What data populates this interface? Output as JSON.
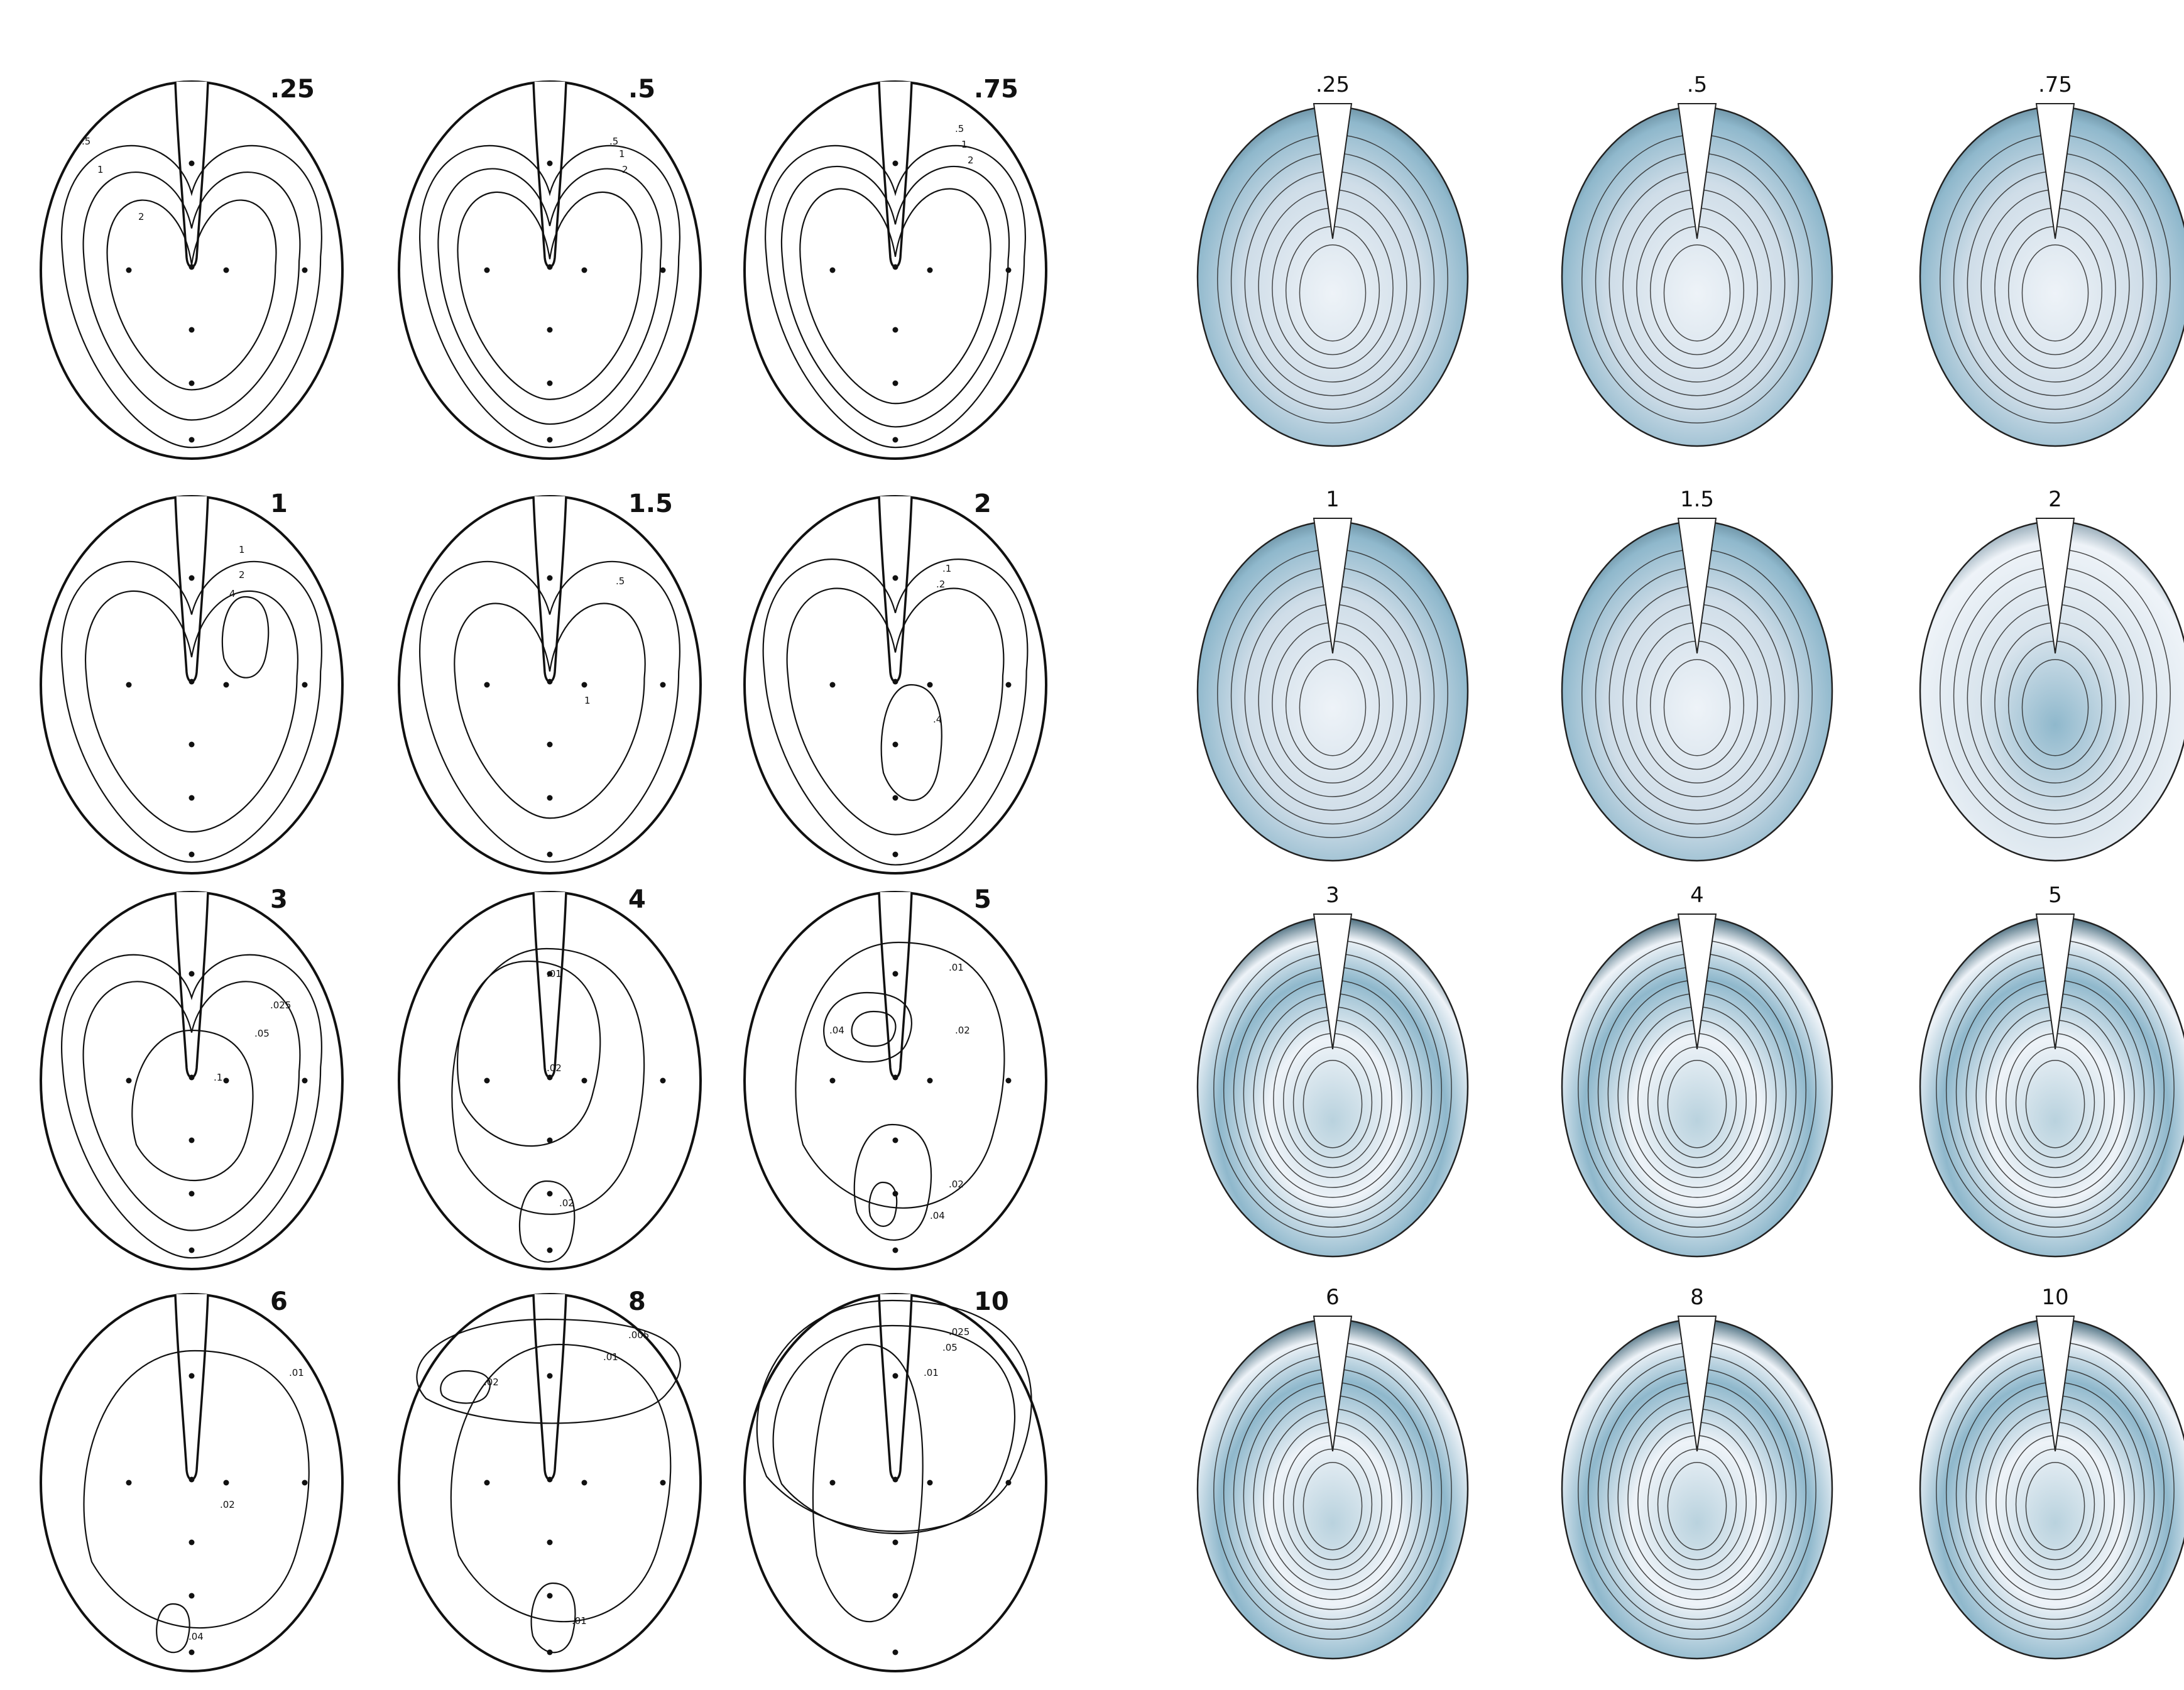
{
  "left_panels": [
    {
      "label": ".25",
      "contour_labels": [
        ".5",
        "1",
        "2"
      ]
    },
    {
      "label": ".5",
      "contour_labels": [
        ".5",
        "1",
        "2"
      ]
    },
    {
      "label": ".75",
      "contour_labels": [
        ".5",
        "1",
        "2"
      ]
    },
    {
      "label": "1",
      "contour_labels": [
        "1",
        "2",
        "4"
      ]
    },
    {
      "label": "1.5",
      "contour_labels": [
        ".5",
        "1"
      ]
    },
    {
      "label": "2",
      "contour_labels": [
        ".1",
        ".2",
        ".4"
      ]
    },
    {
      "label": "3",
      "contour_labels": [
        ".025",
        ".05",
        ".1"
      ]
    },
    {
      "label": "4",
      "contour_labels": [
        ".01",
        ".02",
        ".02"
      ]
    },
    {
      "label": "5",
      "contour_labels": [
        ".01",
        ".04",
        ".02",
        ".02",
        ".04"
      ]
    },
    {
      "label": "6",
      "contour_labels": [
        ".01",
        ".02",
        ".04"
      ]
    },
    {
      "label": "8",
      "contour_labels": [
        ".005",
        ".01",
        ".02",
        ".01"
      ]
    },
    {
      "label": "10",
      "contour_labels": [
        ".025",
        ".05",
        ".01"
      ]
    }
  ],
  "right_panels": [
    {
      "label": ".25"
    },
    {
      "label": ".5"
    },
    {
      "label": ".75"
    },
    {
      "label": "1"
    },
    {
      "label": "1.5"
    },
    {
      "label": "2"
    },
    {
      "label": "3"
    },
    {
      "label": "4"
    },
    {
      "label": "5"
    },
    {
      "label": "6"
    },
    {
      "label": "8"
    },
    {
      "label": "10"
    }
  ],
  "colors": {
    "line": "#111111",
    "shade_light": "#eef3f8",
    "shade_blue": "#8fb8cc",
    "shade_dark": "#4d6f80"
  }
}
